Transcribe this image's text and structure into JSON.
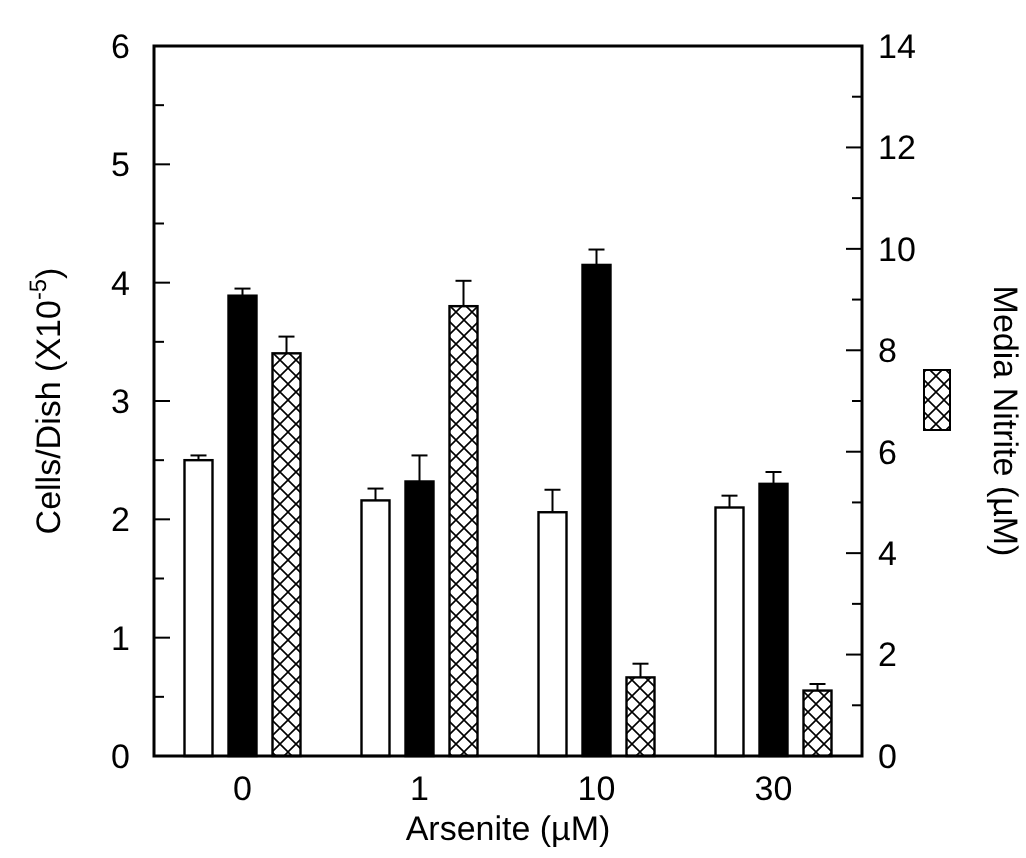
{
  "chart_data": {
    "type": "bar",
    "xlabel": "Arsenite (µM)",
    "ylabel": "Cells/Dish (X10$^{-5}$)",
    "y2label": "Media Nitrite (µM)",
    "categories": [
      "0",
      "1",
      "10",
      "30"
    ],
    "series": [
      {
        "color": "#ffffff",
        "values": [
          2.5,
          2.16,
          2.06,
          2.1
        ],
        "errors": [
          [
            2.5,
            2.54
          ],
          [
            2.16,
            2.26
          ],
          [
            2.06,
            2.25
          ],
          [
            2.1,
            2.2
          ]
        ]
      },
      {
        "color": "#000000",
        "values": [
          3.89,
          2.32,
          4.15,
          2.3
        ],
        "errors": [
          [
            3.89,
            3.95
          ],
          [
            2.32,
            2.54
          ],
          [
            4.15,
            4.28
          ],
          [
            2.3,
            2.4
          ]
        ]
      },
      {
        "color": "#000000",
        "axis": "y2",
        "values": [
          7.94,
          8.87,
          1.55,
          1.29
        ],
        "errors": [
          [
            7.94,
            8.27
          ],
          [
            8.87,
            9.37
          ],
          [
            1.55,
            1.82
          ],
          [
            1.29,
            1.42
          ]
        ]
      }
    ],
    "ylim": [
      0,
      6
    ],
    "yticks": [
      0,
      {
        "value": 0.5,
        "label": null
      },
      1,
      {
        "value": 1.5,
        "label": null
      },
      2,
      {
        "value": 2.5,
        "label": null
      },
      3,
      {
        "value": 3.5,
        "label": null
      },
      4,
      {
        "value": 4.5,
        "label": null
      },
      5,
      {
        "value": 5.5,
        "label": null
      },
      6
    ],
    "y2lim": [
      0,
      14
    ],
    "y2ticks": [
      0,
      {
        "value": 1,
        "label": null
      },
      2,
      {
        "value": 3,
        "label": null
      },
      4,
      {
        "value": 5,
        "label": null
      },
      6,
      {
        "value": 7,
        "label": null
      },
      8,
      {
        "value": 9,
        "label": null
      },
      10,
      {
        "value": 11,
        "label": null
      },
      12,
      {
        "value": 13,
        "label": null
      },
      14
    ],
    "grid": false
  }
}
